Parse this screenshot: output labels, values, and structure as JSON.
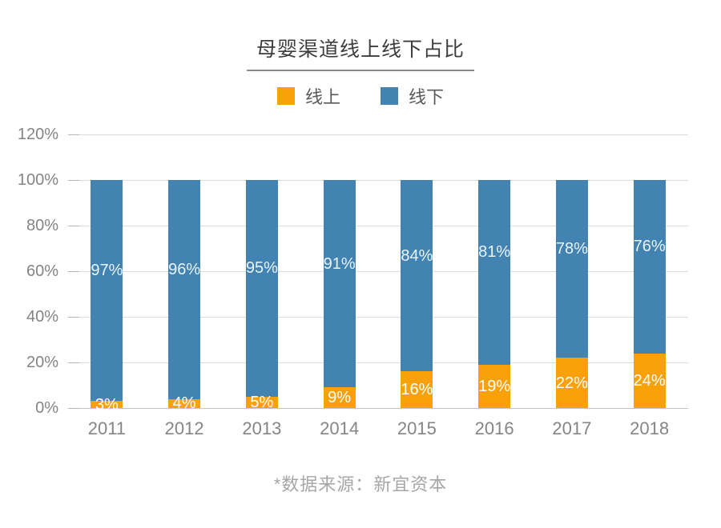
{
  "footer": {
    "source_note": "*数据来源：新宜资本"
  },
  "colors": {
    "online": "#F9A10B",
    "offline": "#4283B2",
    "grid": "#DCDCDC",
    "axis_text": "#848484",
    "title_text": "#3D3D3D",
    "legend_text": "#595959"
  },
  "chart_data": {
    "type": "bar",
    "stacked": true,
    "title": "母婴渠道线上线下占比",
    "categories": [
      "2011",
      "2012",
      "2013",
      "2014",
      "2015",
      "2016",
      "2017",
      "2018"
    ],
    "series": [
      {
        "name": "线上",
        "color": "#F9A10B",
        "label_color": "#FFFFFF",
        "values": [
          3,
          4,
          5,
          9,
          16,
          19,
          22,
          24
        ]
      },
      {
        "name": "线下",
        "color": "#4283B2",
        "label_color": "#E9F4FB",
        "values": [
          97,
          96,
          95,
          91,
          84,
          81,
          78,
          76
        ]
      }
    ],
    "value_suffix": "%",
    "y_ticks": [
      "0%",
      "20%",
      "40%",
      "60%",
      "80%",
      "100%",
      "120%"
    ],
    "ylim": [
      0,
      120
    ],
    "grid": true,
    "legend_position": "top",
    "source_note": "*数据来源：新宜资本"
  }
}
